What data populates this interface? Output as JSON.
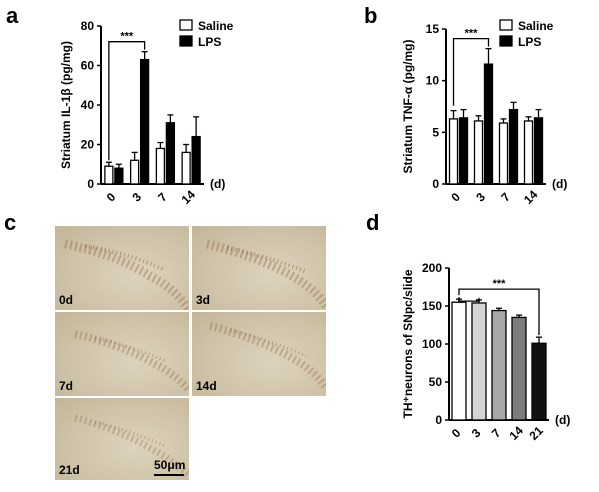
{
  "panel_labels": {
    "a": "a",
    "b": "b",
    "c": "c",
    "d": "d"
  },
  "colors": {
    "saline": "#ffffff",
    "lps": "#000000",
    "d3": "#d4d4d4",
    "d7": "#a8a8a8",
    "d14": "#7c7c7c",
    "d21": "#111111"
  },
  "micrographs": {
    "labels": [
      "0d",
      "3d",
      "7d",
      "14d",
      "21d"
    ],
    "scale_bar": "50μm"
  },
  "chart_data": [
    {
      "id": "a",
      "type": "bar",
      "categories": [
        "0",
        "3",
        "7",
        "14"
      ],
      "ylabel": "Striatum IL-1β (pg/mg)",
      "xunit": "(d)",
      "ylim": [
        0,
        80
      ],
      "yticks": [
        0,
        20,
        40,
        60,
        80
      ],
      "series": [
        {
          "name": "Saline",
          "values": [
            9,
            12,
            18,
            16
          ],
          "errors": [
            2,
            4,
            3,
            4
          ]
        },
        {
          "name": "LPS",
          "values": [
            8,
            63,
            31,
            24
          ],
          "errors": [
            2,
            4,
            4,
            10
          ]
        }
      ],
      "significance": {
        "label": "***",
        "between": [
          "0",
          "3"
        ],
        "series": "LPS"
      }
    },
    {
      "id": "b",
      "type": "bar",
      "categories": [
        "0",
        "3",
        "7",
        "14"
      ],
      "ylabel": "Striatum TNF-α (pg/mg)",
      "xunit": "(d)",
      "ylim": [
        0,
        15
      ],
      "yticks": [
        0,
        5,
        10,
        15
      ],
      "series": [
        {
          "name": "Saline",
          "values": [
            6.3,
            6.1,
            5.9,
            6.1
          ],
          "errors": [
            0.8,
            0.5,
            0.4,
            0.4
          ]
        },
        {
          "name": "LPS",
          "values": [
            6.4,
            11.6,
            7.2,
            6.4
          ],
          "errors": [
            0.8,
            1.5,
            0.7,
            0.8
          ]
        }
      ],
      "significance": {
        "label": "***",
        "between": [
          "0",
          "3"
        ],
        "series": "LPS"
      }
    },
    {
      "id": "d",
      "type": "bar",
      "categories": [
        "0",
        "3",
        "7",
        "14",
        "21"
      ],
      "ylabel": "TH⁺neurons of SNpc/slide",
      "xunit": "(d)",
      "ylim": [
        0,
        200
      ],
      "yticks": [
        0,
        50,
        100,
        150,
        200
      ],
      "values": [
        155,
        154,
        144,
        135,
        101
      ],
      "errors": [
        4,
        4,
        3,
        3,
        8
      ],
      "significance": {
        "label": "***",
        "between": [
          "0",
          "21"
        ]
      }
    }
  ]
}
